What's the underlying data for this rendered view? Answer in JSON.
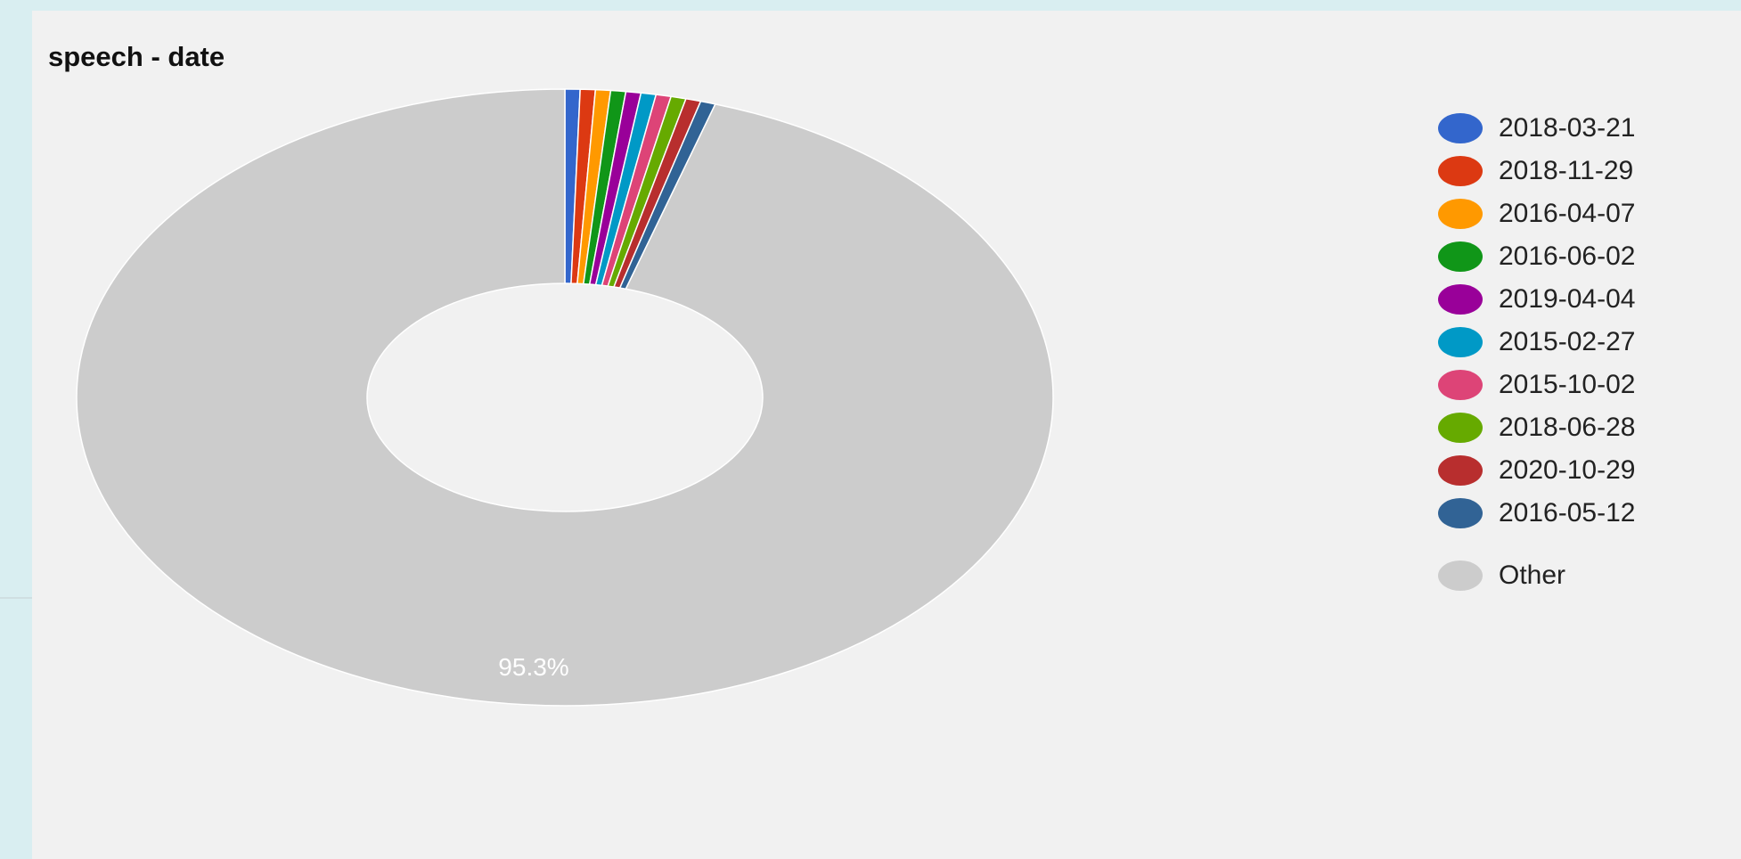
{
  "chart_data": {
    "type": "pie",
    "title": "speech - date",
    "donut": true,
    "categories": [
      "2018-03-21",
      "2018-11-29",
      "2016-04-07",
      "2016-06-02",
      "2019-04-04",
      "2015-02-27",
      "2015-10-02",
      "2018-06-28",
      "2020-10-29",
      "2016-05-12",
      "Other"
    ],
    "values": [
      0.5,
      0.5,
      0.5,
      0.5,
      0.5,
      0.5,
      0.5,
      0.5,
      0.5,
      0.5,
      95.3
    ],
    "colors": [
      "#3366cc",
      "#dc3912",
      "#ff9900",
      "#109618",
      "#990099",
      "#0099c6",
      "#dd4477",
      "#66aa00",
      "#b82e2e",
      "#316395",
      "#cccccc"
    ],
    "slice_label": "95.3%",
    "legend_position": "right"
  }
}
